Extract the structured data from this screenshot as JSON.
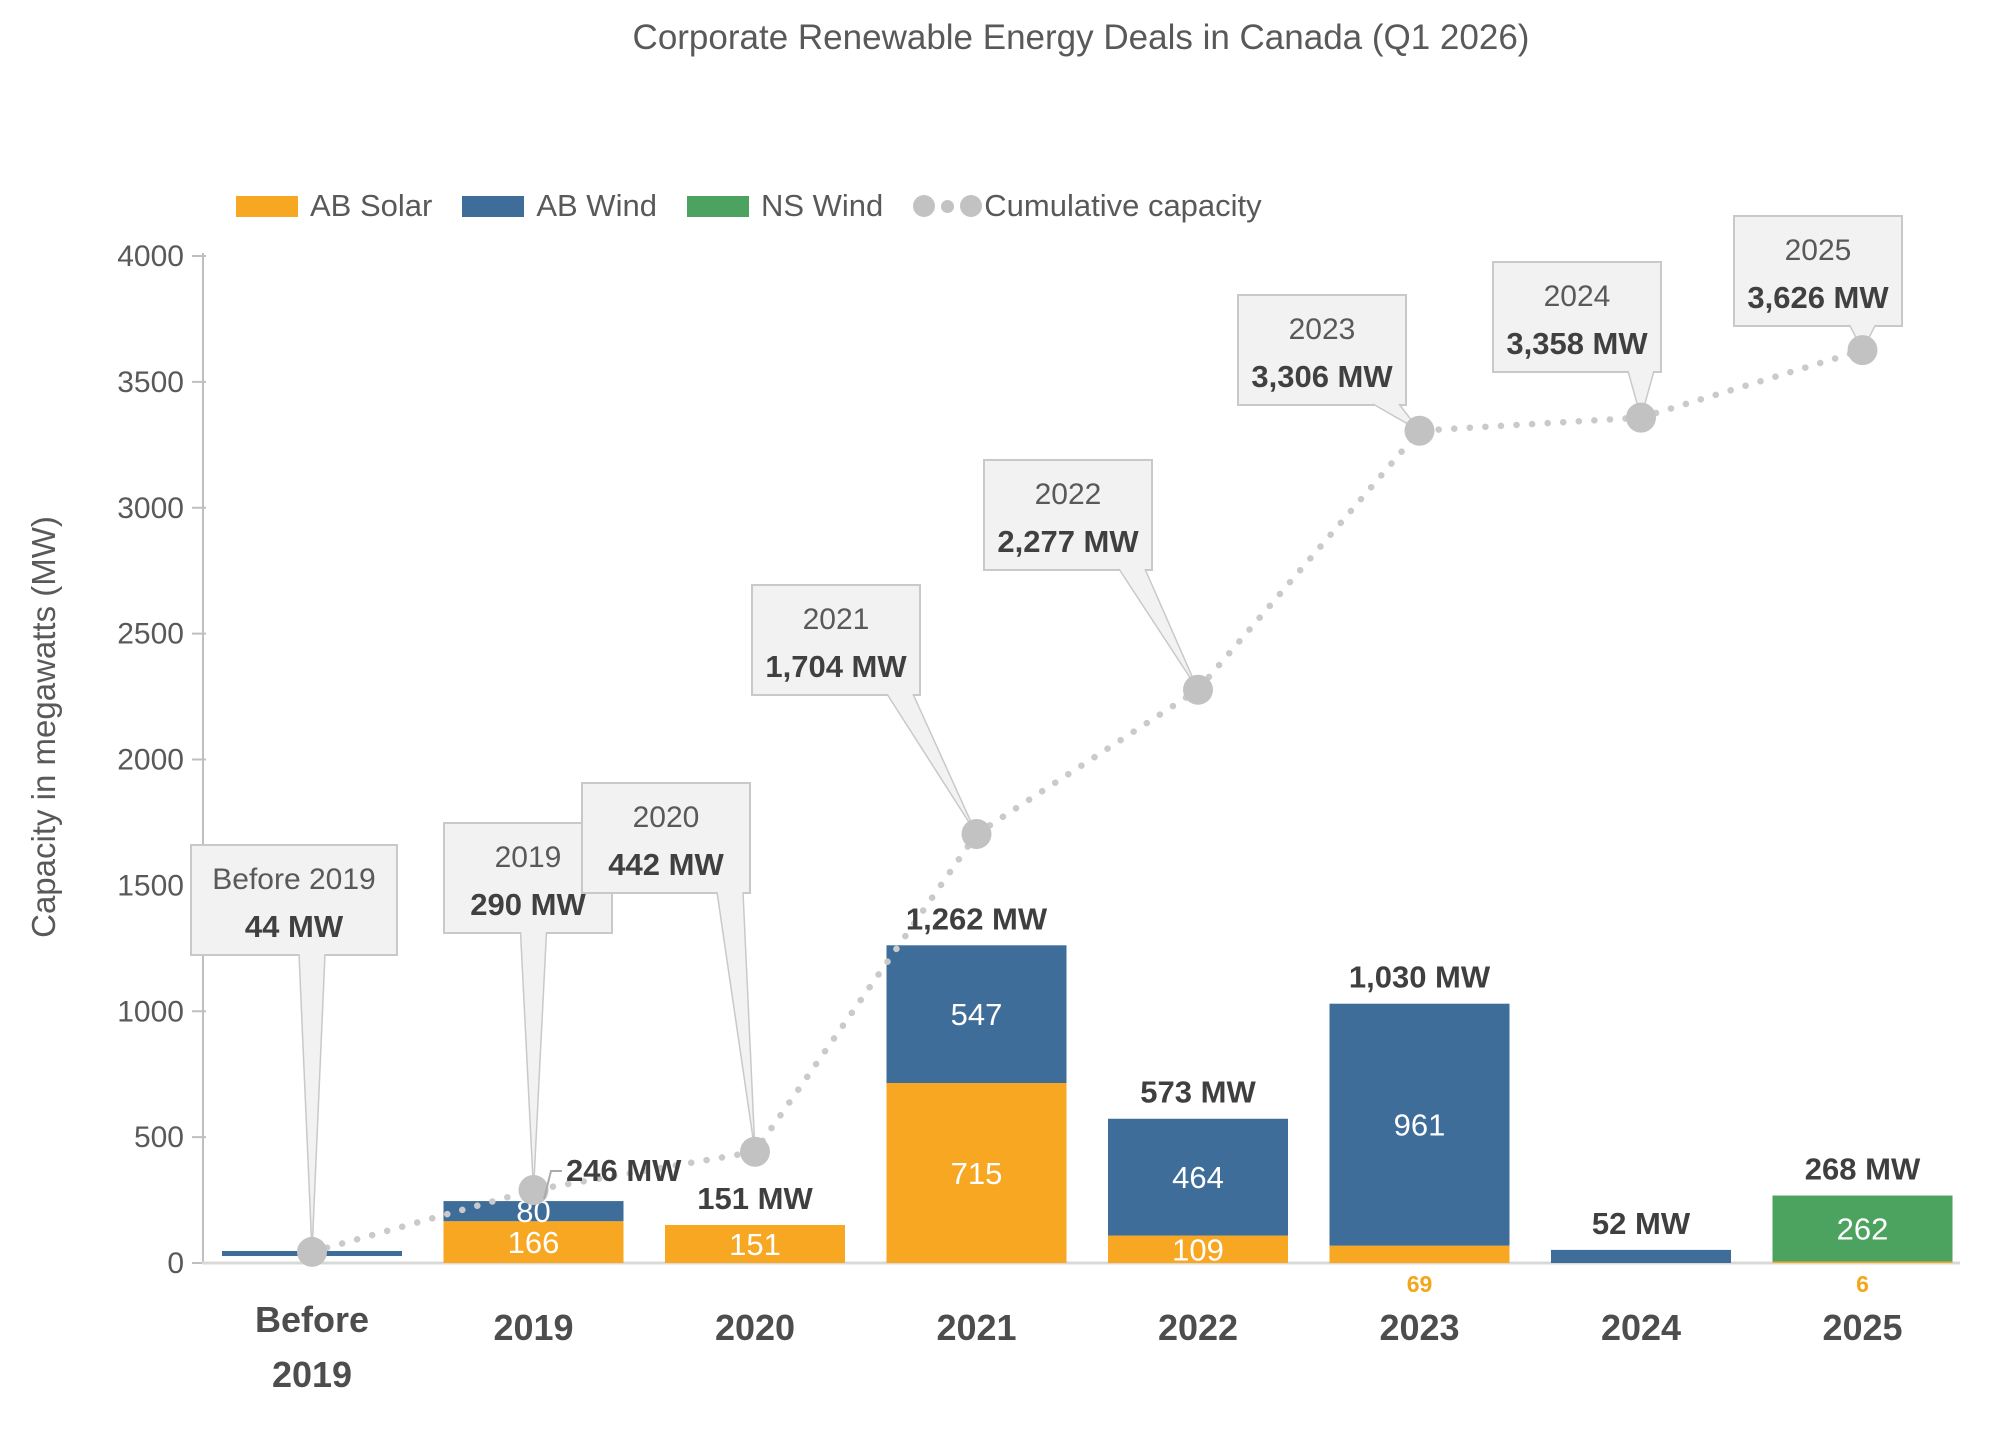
{
  "title": "Corporate Renewable Energy Deals in Canada (Q1 2026)",
  "chart_data": {
    "type": "bar",
    "stacked": true,
    "title": "Corporate Renewable Energy Deals in Canada (Q1 2026)",
    "xlabel": "",
    "ylabel": "Capacity in megawatts (MW)",
    "ylim": [
      0,
      4000
    ],
    "ytick_step": 500,
    "ytick_labels": [
      "0",
      "500",
      "1000",
      "1500",
      "2000",
      "2500",
      "3000",
      "3500",
      "4000"
    ],
    "grid": false,
    "legend_position": "top-left",
    "categories": [
      "Before 2019",
      "2019",
      "2020",
      "2021",
      "2022",
      "2023",
      "2024",
      "2025"
    ],
    "series": [
      {
        "name": "AB Solar",
        "color": "#F7A722",
        "values": [
          0,
          166,
          151,
          715,
          109,
          69,
          0,
          6
        ]
      },
      {
        "name": "AB Wind",
        "color": "#3E6D9A",
        "values": [
          44,
          80,
          0,
          547,
          464,
          961,
          52,
          0
        ]
      },
      {
        "name": "NS Wind",
        "color": "#4CA35F",
        "values": [
          0,
          0,
          0,
          0,
          0,
          0,
          0,
          262
        ]
      }
    ],
    "total_labels": [
      "",
      "246 MW",
      "151 MW",
      "1,262 MW",
      "573 MW",
      "1,030 MW",
      "52 MW",
      "268 MW"
    ],
    "below_axis_labels": [
      "",
      "",
      "",
      "",
      "",
      "69",
      "",
      "6"
    ],
    "cumulative": {
      "name": "Cumulative capacity",
      "color": "#C2C2C2",
      "values": [
        44,
        290,
        442,
        1704,
        2277,
        3306,
        3358,
        3626
      ],
      "callouts": [
        {
          "line1": "Before 2019",
          "line2": "44 MW"
        },
        {
          "line1": "2019",
          "line2": "290 MW"
        },
        {
          "line1": "2020",
          "line2": "442 MW"
        },
        {
          "line1": "2021",
          "line2": "1,704 MW"
        },
        {
          "line1": "2022",
          "line2": "2,277 MW"
        },
        {
          "line1": "2023",
          "line2": "3,306 MW"
        },
        {
          "line1": "2024",
          "line2": "3,358 MW"
        },
        {
          "line1": "2025",
          "line2": "3,626 MW"
        }
      ]
    },
    "colors": {
      "axis_line": "#BFBFBF",
      "x_axis_line": "#D9D9D9",
      "tick_text": "#595959",
      "category_text": "#4D4D4D",
      "total_text": "#3F3F3F",
      "inside_label_text": "#FFFFFF",
      "below_label_text": "#F2A71B",
      "callout_bg": "#F2F2F2",
      "callout_border": "#C9C9C9",
      "callout_title_text": "#595959",
      "callout_value_text": "#404040",
      "dotted_line": "#CACACA"
    }
  }
}
